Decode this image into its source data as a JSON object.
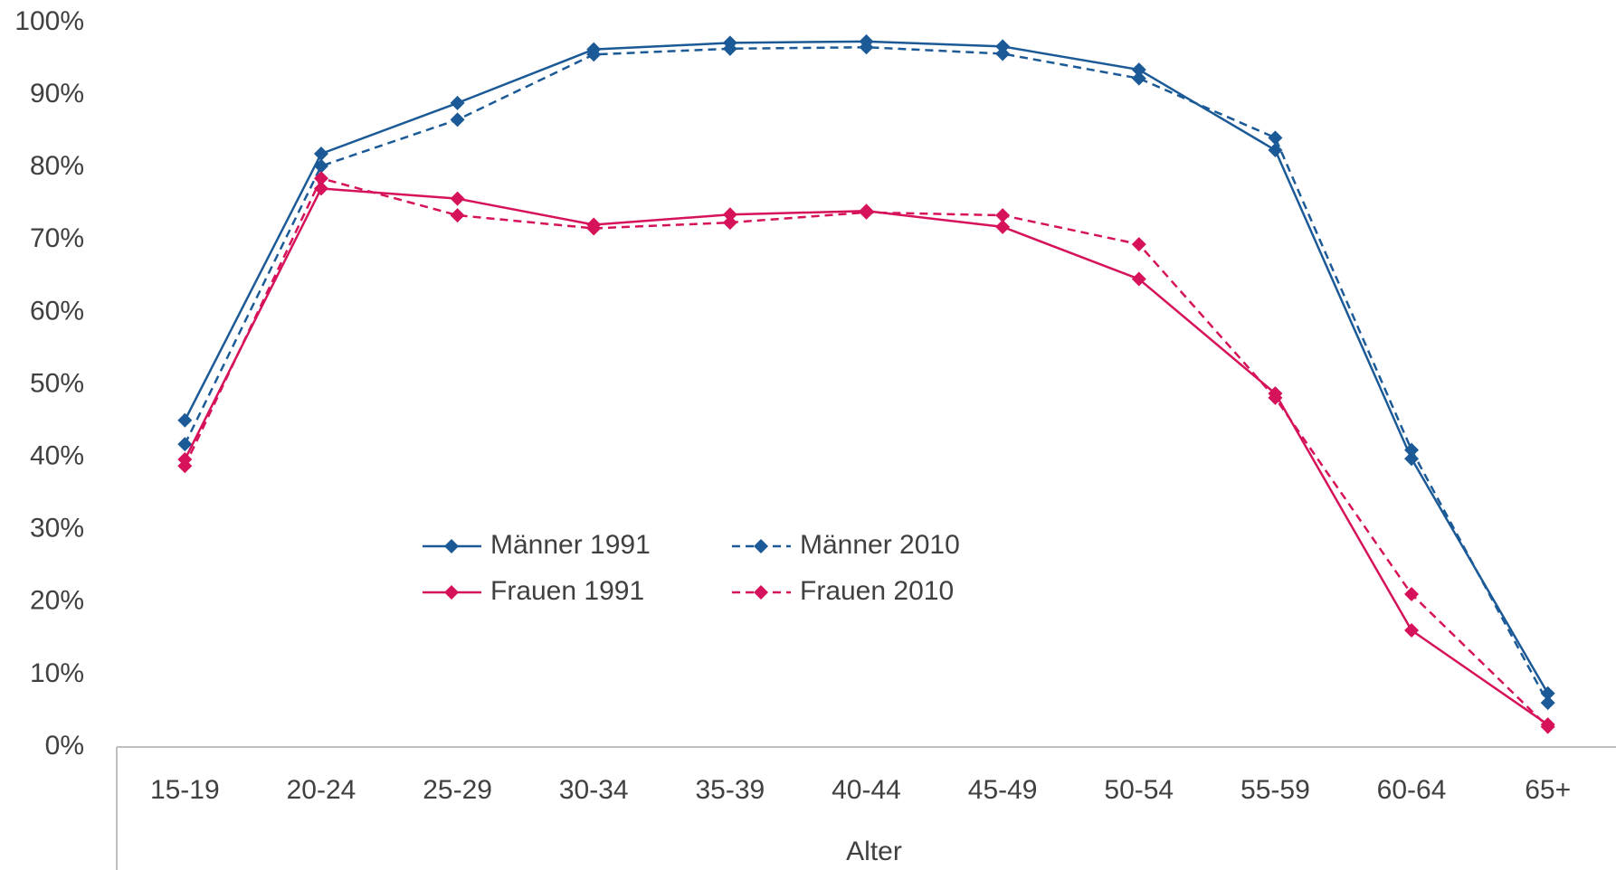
{
  "chart_data": {
    "type": "line",
    "x_label": "Alter",
    "categories": [
      "15-19",
      "20-24",
      "25-29",
      "30-34",
      "35-39",
      "40-44",
      "45-49",
      "50-54",
      "55-59",
      "60-64",
      "65+"
    ],
    "series": [
      {
        "name": "Männer 1991",
        "color": "#1b5a96",
        "dashed": false,
        "values": [
          45.1,
          81.9,
          88.9,
          96.3,
          97.2,
          97.4,
          96.7,
          93.5,
          82.4,
          39.8,
          7.4
        ]
      },
      {
        "name": "Männer 2010",
        "color": "#1b5a96",
        "dashed": true,
        "values": [
          41.8,
          80.2,
          86.6,
          95.6,
          96.4,
          96.6,
          95.7,
          92.3,
          84.1,
          41.0,
          6.1
        ]
      },
      {
        "name": "Frauen 1991",
        "color": "#d6125a",
        "dashed": false,
        "values": [
          39.7,
          77.1,
          75.7,
          72.1,
          73.5,
          74.0,
          71.8,
          64.6,
          48.8,
          16.1,
          3.1
        ]
      },
      {
        "name": "Frauen 2010",
        "color": "#d6125a",
        "dashed": true,
        "values": [
          38.8,
          78.5,
          73.4,
          71.6,
          72.4,
          73.8,
          73.4,
          69.4,
          48.2,
          21.1,
          2.8
        ]
      }
    ],
    "ylim": [
      0,
      100
    ],
    "yticks": [
      {
        "value": 0,
        "label": "0%"
      },
      {
        "value": 10,
        "label": "10%"
      },
      {
        "value": 20,
        "label": "20%"
      },
      {
        "value": 30,
        "label": "30%"
      },
      {
        "value": 40,
        "label": "40%"
      },
      {
        "value": 50,
        "label": "50%"
      },
      {
        "value": 60,
        "label": "60%"
      },
      {
        "value": 70,
        "label": "70%"
      },
      {
        "value": 80,
        "label": "80%"
      },
      {
        "value": 90,
        "label": "90%"
      },
      {
        "value": 100,
        "label": "100%"
      }
    ],
    "grid": false
  }
}
